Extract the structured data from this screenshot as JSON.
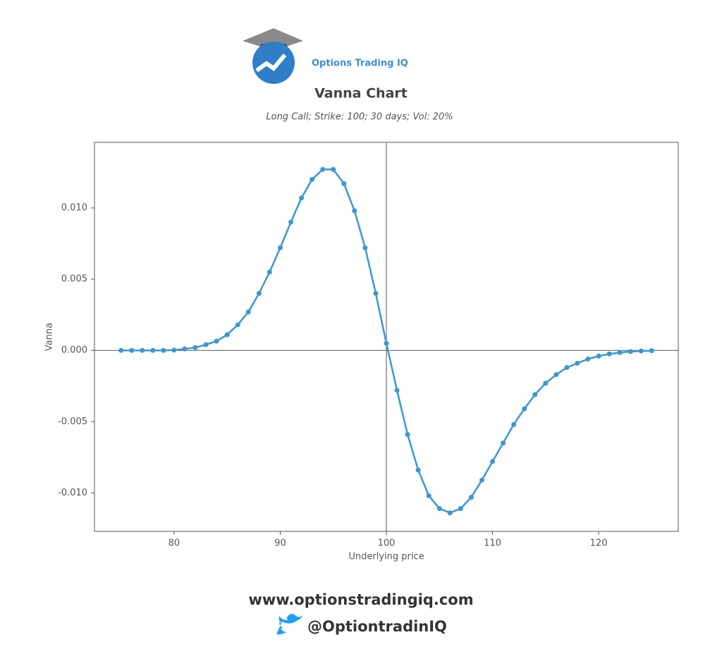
{
  "brand": "Options Trading IQ",
  "footer": {
    "website": "www.optionstradingiq.com",
    "twitter": "@OptiontradinIQ"
  },
  "chart_data": {
    "type": "line",
    "title": "Vanna Chart",
    "subtitle": "Long Call; Strike: 100; 30 days; Vol: 20%",
    "x_label": "Underlying price",
    "y_label": "Vanna",
    "x": [
      75,
      76,
      77,
      78,
      79,
      80,
      81,
      82,
      83,
      84,
      85,
      86,
      87,
      88,
      89,
      90,
      91,
      92,
      93,
      94,
      95,
      96,
      97,
      98,
      99,
      100,
      101,
      102,
      103,
      104,
      105,
      106,
      107,
      108,
      109,
      110,
      111,
      112,
      113,
      114,
      115,
      116,
      117,
      118,
      119,
      120,
      121,
      122,
      123,
      124,
      125
    ],
    "series": [
      {
        "name": "Vanna",
        "color": "#3a97d4",
        "values": [
          0,
          0,
          0,
          0,
          0,
          2e-05,
          0.0001,
          0.0002,
          0.0004,
          0.00065,
          0.0011,
          0.0018,
          0.0027,
          0.004,
          0.0055,
          0.0072,
          0.009,
          0.0107,
          0.012,
          0.0127,
          0.0127,
          0.0117,
          0.0098,
          0.0072,
          0.004,
          0.0005,
          -0.0028,
          -0.0059,
          -0.0084,
          -0.0102,
          -0.0111,
          -0.0114,
          -0.0111,
          -0.0103,
          -0.0091,
          -0.0078,
          -0.0065,
          -0.0052,
          -0.0041,
          -0.0031,
          -0.0023,
          -0.0017,
          -0.0012,
          -0.0009,
          -0.0006,
          -0.0004,
          -0.00025,
          -0.00015,
          -8e-05,
          -4e-05,
          -2e-05
        ]
      }
    ],
    "xlim": [
      72.5,
      127.5
    ],
    "ylim": [
      -0.0127,
      0.0146
    ],
    "xticks": [
      80,
      90,
      100,
      110,
      120
    ],
    "yticks": [
      {
        "value": -0.01,
        "label": "-0.010"
      },
      {
        "value": -0.005,
        "label": "-0.005"
      },
      {
        "value": 0,
        "label": "0.000"
      },
      {
        "value": 0.005,
        "label": "0.005"
      },
      {
        "value": 0.01,
        "label": "0.010"
      }
    ],
    "vline": 100,
    "hline": 0,
    "grid": false
  }
}
